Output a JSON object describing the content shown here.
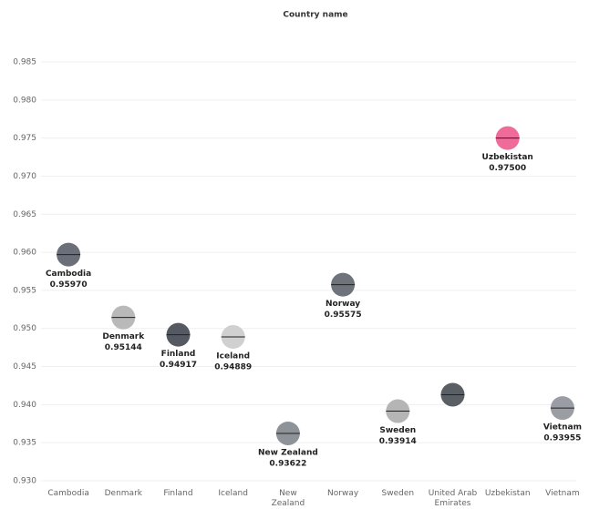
{
  "chart_data": {
    "type": "dot",
    "title": "Country name",
    "categories": [
      "Cambodia",
      "Denmark",
      "Finland",
      "Iceland",
      "New Zealand",
      "Norway",
      "Sweden",
      "United Arab Emirates",
      "Uzbekistan",
      "Vietnam"
    ],
    "values": [
      0.9597,
      0.95144,
      0.94917,
      0.94889,
      0.93622,
      0.95575,
      0.93914,
      0.9413,
      0.975,
      0.93955
    ],
    "value_labels": [
      "0.95970",
      "0.95144",
      "0.94917",
      "0.94889",
      "0.93622",
      "0.95575",
      "0.93914",
      null,
      "0.97500",
      "0.93955"
    ],
    "colors": [
      "#6b6f7a",
      "#b9b9b9",
      "#555a62",
      "#d0d0d0",
      "#8e9299",
      "#6e737c",
      "#b5b5b5",
      "#5a5f66",
      "#ef6c9a",
      "#9a9ea4"
    ],
    "ylim": [
      0.93,
      0.985
    ],
    "yticks": [
      {
        "value": 0.93,
        "label": "0.930"
      },
      {
        "value": 0.935,
        "label": "0.935"
      },
      {
        "value": 0.94,
        "label": "0.940"
      },
      {
        "value": 0.945,
        "label": "0.945"
      },
      {
        "value": 0.95,
        "label": "0.950"
      },
      {
        "value": 0.955,
        "label": "0.955"
      },
      {
        "value": 0.96,
        "label": "0.960"
      },
      {
        "value": 0.965,
        "label": "0.965"
      },
      {
        "value": 0.97,
        "label": "0.970"
      },
      {
        "value": 0.975,
        "label": "0.975"
      },
      {
        "value": 0.98,
        "label": "0.980"
      },
      {
        "value": 0.985,
        "label": "0.985"
      }
    ],
    "grid": true
  }
}
